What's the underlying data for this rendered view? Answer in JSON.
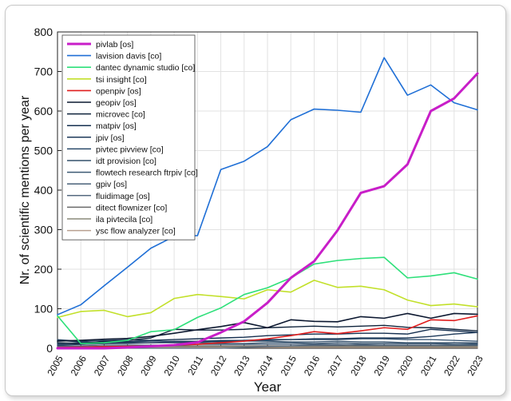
{
  "chart_data": {
    "type": "line",
    "title": "",
    "xlabel": "Year",
    "ylabel": "Nr. of scientific mentions per year",
    "xlim": [
      2005,
      2023
    ],
    "ylim": [
      0,
      800
    ],
    "yticks": [
      0,
      100,
      200,
      300,
      400,
      500,
      600,
      700,
      800
    ],
    "grid": true,
    "legend_position": "top-left",
    "categories": [
      "2005",
      "2006",
      "2007",
      "2008",
      "2009",
      "2010",
      "2011",
      "2012",
      "2013",
      "2014",
      "2015",
      "2016",
      "2017",
      "2018",
      "2019",
      "2020",
      "2021",
      "2022",
      "2023"
    ],
    "series": [
      {
        "name": "pivlab [os]",
        "color": "#c81ec8",
        "width": 3,
        "values": [
          0,
          0,
          0,
          2,
          5,
          8,
          15,
          40,
          68,
          115,
          178,
          220,
          298,
          393,
          410,
          465,
          600,
          632,
          695
        ]
      },
      {
        "name": "lavision davis [co]",
        "color": "#1f6fd6",
        "width": 1.6,
        "values": [
          85,
          110,
          158,
          205,
          253,
          283,
          285,
          452,
          473,
          510,
          578,
          605,
          602,
          597,
          735,
          640,
          666,
          621,
          603
        ]
      },
      {
        "name": "dantec dynamic studio [co]",
        "color": "#2ee07a",
        "width": 1.6,
        "values": [
          82,
          12,
          14,
          20,
          42,
          47,
          78,
          102,
          136,
          153,
          178,
          213,
          222,
          227,
          230,
          178,
          183,
          191,
          175
        ]
      },
      {
        "name": "tsi insight [co]",
        "color": "#c2e02a",
        "width": 1.6,
        "values": [
          78,
          93,
          96,
          80,
          90,
          126,
          136,
          131,
          125,
          148,
          142,
          172,
          154,
          157,
          148,
          122,
          108,
          112,
          105
        ]
      },
      {
        "name": "openpiv [os]",
        "color": "#e01e1e",
        "width": 1.6,
        "values": [
          2,
          3,
          4,
          5,
          6,
          8,
          10,
          14,
          18,
          24,
          32,
          42,
          37,
          44,
          52,
          48,
          72,
          70,
          82
        ]
      },
      {
        "name": "geopiv [os]",
        "color": "#0c1830",
        "width": 1.6,
        "values": [
          18,
          20,
          23,
          25,
          30,
          38,
          47,
          55,
          65,
          52,
          72,
          68,
          67,
          80,
          76,
          88,
          76,
          88,
          86
        ]
      },
      {
        "name": "microvec [co]",
        "color": "#10243c",
        "width": 1.4,
        "values": [
          14,
          12,
          18,
          20,
          26,
          48,
          46,
          46,
          48,
          52,
          54,
          56,
          54,
          56,
          58,
          53,
          52,
          48,
          44
        ]
      },
      {
        "name": "matpiv [os]",
        "color": "#163050",
        "width": 1.4,
        "values": [
          20,
          16,
          15,
          17,
          20,
          22,
          24,
          26,
          28,
          32,
          34,
          36,
          36,
          38,
          38,
          36,
          48,
          44,
          40
        ]
      },
      {
        "name": "jpiv [os]",
        "color": "#1e3a5a",
        "width": 1.4,
        "values": [
          8,
          10,
          12,
          14,
          14,
          16,
          16,
          18,
          20,
          22,
          22,
          24,
          24,
          26,
          26,
          26,
          30,
          36,
          40
        ]
      },
      {
        "name": "pivtec pivview [co]",
        "color": "#2a4a6a",
        "width": 1.3,
        "values": [
          12,
          14,
          16,
          16,
          18,
          18,
          18,
          20,
          20,
          20,
          22,
          22,
          22,
          24,
          24,
          22,
          22,
          20,
          18
        ]
      },
      {
        "name": "idt provision [co]",
        "color": "#34506c",
        "width": 1.3,
        "values": [
          22,
          18,
          20,
          22,
          20,
          16,
          16,
          16,
          18,
          18,
          16,
          16,
          18,
          16,
          16,
          14,
          14,
          14,
          12
        ]
      },
      {
        "name": "flowtech research ftrpiv [co]",
        "color": "#3e5a74",
        "width": 1.3,
        "values": [
          10,
          10,
          12,
          12,
          14,
          14,
          14,
          12,
          12,
          14,
          14,
          12,
          14,
          12,
          12,
          12,
          12,
          10,
          10
        ]
      },
      {
        "name": "gpiv [os]",
        "color": "#4a627a",
        "width": 1.3,
        "values": [
          6,
          6,
          8,
          8,
          8,
          8,
          10,
          10,
          10,
          10,
          10,
          10,
          10,
          8,
          8,
          8,
          8,
          8,
          8
        ]
      },
      {
        "name": "fluidimage [os]",
        "color": "#566a80",
        "width": 1.3,
        "values": [
          0,
          0,
          0,
          0,
          0,
          0,
          0,
          0,
          2,
          4,
          6,
          8,
          8,
          10,
          12,
          12,
          12,
          14,
          14
        ]
      },
      {
        "name": "ditect flownizer [co]",
        "color": "#6a6a6a",
        "width": 1.3,
        "values": [
          4,
          4,
          5,
          5,
          6,
          6,
          6,
          6,
          6,
          6,
          6,
          6,
          6,
          6,
          6,
          6,
          6,
          6,
          6
        ]
      },
      {
        "name": "ila pivtecila [co]",
        "color": "#8a8a7a",
        "width": 1.3,
        "values": [
          3,
          3,
          4,
          4,
          4,
          4,
          4,
          4,
          4,
          4,
          4,
          4,
          4,
          4,
          4,
          4,
          4,
          4,
          4
        ]
      },
      {
        "name": "ysc flow analyzer [co]",
        "color": "#b8a090",
        "width": 1.3,
        "values": [
          2,
          2,
          2,
          2,
          2,
          2,
          2,
          2,
          2,
          2,
          2,
          2,
          2,
          2,
          2,
          2,
          2,
          2,
          2
        ]
      }
    ]
  }
}
